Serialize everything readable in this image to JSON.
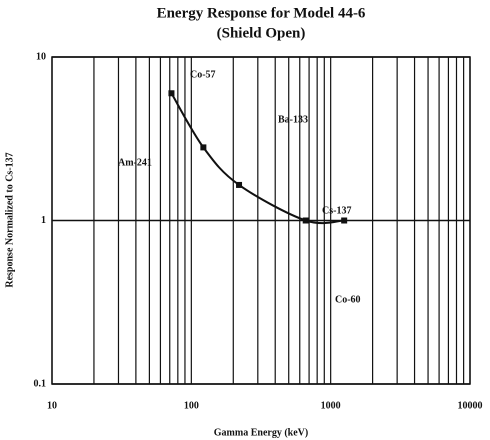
{
  "chart_data": {
    "type": "line",
    "title": "Energy Response for Model 44-6",
    "subtitle": "(Shield Open)",
    "x_label": "Gamma Energy (keV)",
    "y_label": "Response Normalized to Cs-137",
    "x": [
      72,
      122,
      220,
      662,
      1250
    ],
    "values": [
      6.0,
      2.8,
      1.65,
      1.0,
      1.0
    ],
    "color": "#111111",
    "log_x": true,
    "log_y": true,
    "xlim": [
      10,
      10000
    ],
    "ylim": [
      0.1,
      10
    ],
    "xticks": [
      10,
      100,
      1000,
      10000
    ],
    "x_minor_ticks": [
      20,
      30,
      40,
      50,
      60,
      70,
      80,
      90,
      200,
      300,
      400,
      500,
      600,
      700,
      800,
      900,
      2000,
      3000,
      4000,
      5000,
      6000,
      7000,
      8000,
      9000
    ],
    "yticks": [
      0.1,
      1,
      10
    ],
    "grid": true,
    "annotations": [
      "Co-57",
      "Ba-133",
      "Am-241",
      "Cs-137",
      "Co-60"
    ]
  }
}
